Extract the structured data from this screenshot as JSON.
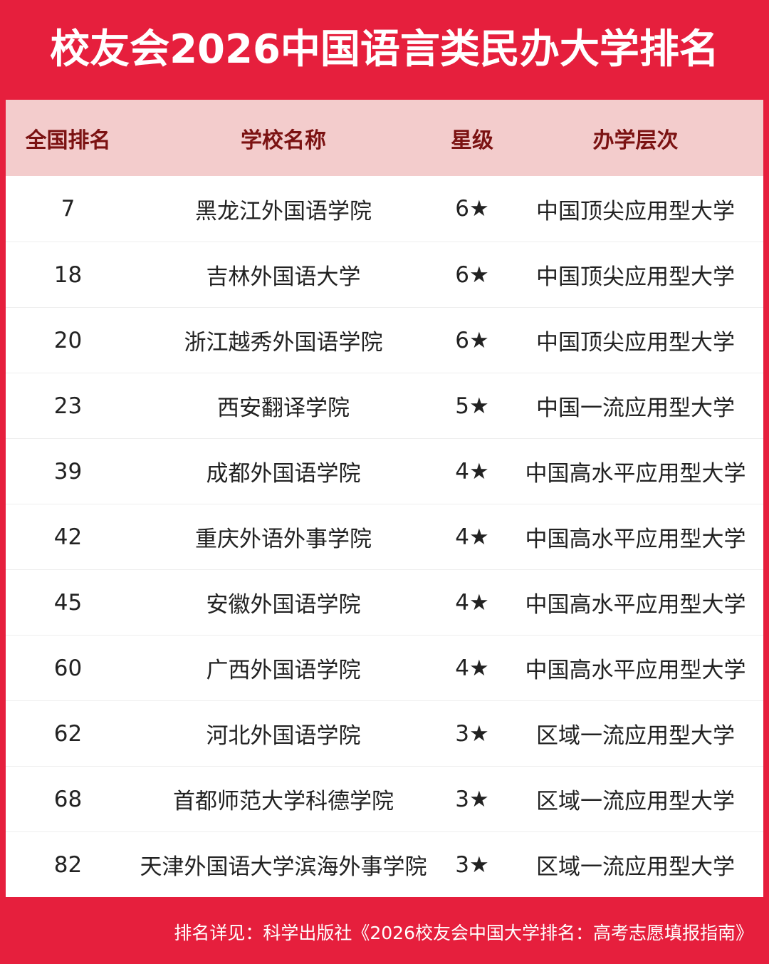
{
  "header": {
    "title": "校友会2026中国语言类民办大学排名"
  },
  "table": {
    "columns": [
      "全国排名",
      "学校名称",
      "星级",
      "办学层次"
    ],
    "rows": [
      [
        7,
        "黑龙江外国语学院",
        "6★",
        "中国顶尖应用型大学"
      ],
      [
        18,
        "吉林外国语大学",
        "6★",
        "中国顶尖应用型大学"
      ],
      [
        20,
        "浙江越秀外国语学院",
        "6★",
        "中国顶尖应用型大学"
      ],
      [
        23,
        "西安翻译学院",
        "5★",
        "中国一流应用型大学"
      ],
      [
        39,
        "成都外国语学院",
        "4★",
        "中国高水平应用型大学"
      ],
      [
        42,
        "重庆外语外事学院",
        "4★",
        "中国高水平应用型大学"
      ],
      [
        45,
        "安徽外国语学院",
        "4★",
        "中国高水平应用型大学"
      ],
      [
        60,
        "广西外国语学院",
        "4★",
        "中国高水平应用型大学"
      ],
      [
        62,
        "河北外国语学院",
        "3★",
        "区域一流应用型大学"
      ],
      [
        68,
        "首都师范大学科德学院",
        "3★",
        "区域一流应用型大学"
      ],
      [
        82,
        "天津外国语大学滨海外事学院",
        "3★",
        "区域一流应用型大学"
      ]
    ]
  },
  "footer": {
    "note": "排名详见：科学出版社《2026校友会中国大学排名：高考志愿填报指南》"
  }
}
